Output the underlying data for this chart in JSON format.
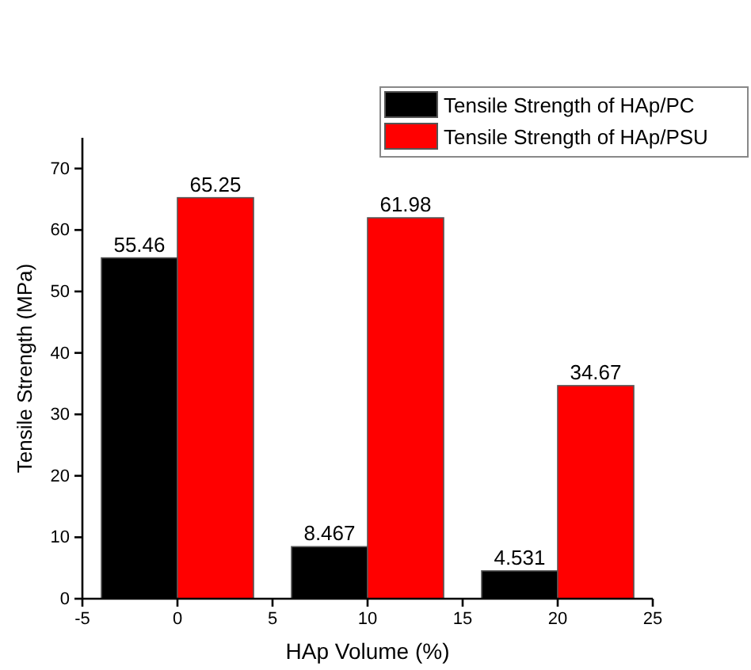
{
  "chart_data": {
    "type": "bar",
    "xlabel": "HAp Volume (%)",
    "ylabel": "Tensile Strength (MPa)",
    "x": [
      0,
      10,
      20
    ],
    "series": [
      {
        "name": "Tensile Strength of HAp/PC",
        "color": "#000000",
        "values": [
          55.46,
          8.467,
          4.531
        ]
      },
      {
        "name": "Tensile Strength of HAp/PSU",
        "color": "#ff0000",
        "values": [
          65.25,
          61.98,
          34.67
        ]
      }
    ],
    "xlim": [
      -5,
      25
    ],
    "xticks": [
      -5,
      0,
      5,
      10,
      15,
      20,
      25
    ],
    "ylim": [
      0,
      75
    ],
    "yticks": [
      0,
      10,
      20,
      30,
      40,
      50,
      60,
      70
    ],
    "data_labels": true,
    "legend": "top right",
    "grid": false
  }
}
